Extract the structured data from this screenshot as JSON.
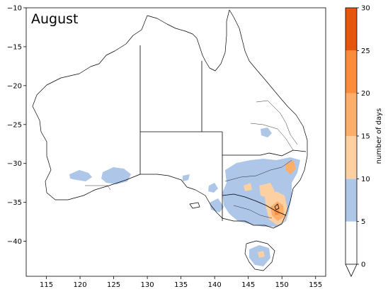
{
  "map": {
    "title": "August",
    "x_ticks": [
      "115",
      "120",
      "125",
      "130",
      "135",
      "140",
      "145",
      "150",
      "155"
    ],
    "y_ticks": [
      "−10",
      "−15",
      "−20",
      "−25",
      "−30",
      "−35",
      "−40"
    ],
    "x_range": [
      112,
      156.5
    ],
    "y_range": [
      -44.5,
      -10
    ],
    "regions": [
      "Australia",
      "Tasmania"
    ],
    "state_borders": true
  },
  "colorbar": {
    "label": "number of days",
    "ticks": [
      "0",
      "5",
      "10",
      "15",
      "20",
      "25",
      "30"
    ],
    "range": [
      0,
      30
    ],
    "extend": "min",
    "bins": [
      {
        "from": 0,
        "to": 5,
        "color": "#ffffff"
      },
      {
        "from": 5,
        "to": 10,
        "color": "#aec6e8"
      },
      {
        "from": 10,
        "to": 15,
        "color": "#fdd0a2"
      },
      {
        "from": 15,
        "to": 20,
        "color": "#fdae6b"
      },
      {
        "from": 20,
        "to": 25,
        "color": "#fd8d3c"
      },
      {
        "from": 25,
        "to": 30,
        "color": "#e6550d"
      }
    ]
  },
  "colors": {
    "low": "#aec6e8",
    "mid": "#fdd0a2",
    "high": "#fdae6b",
    "very_high": "#fd8d3c",
    "extreme": "#e6550d"
  }
}
